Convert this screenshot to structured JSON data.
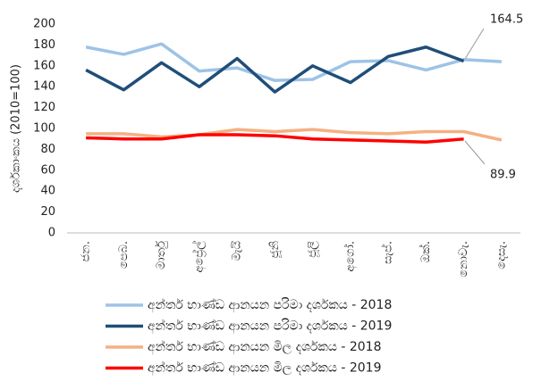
{
  "chart_data": {
    "type": "line",
    "ylabel": "දර්ශකාංකය (2010=100)",
    "categories": [
      "ජන.",
      "පෙබ.",
      "මාර්තු",
      "අප්‍රේල්",
      "මැයි",
      "ජූනි",
      "ජූලි",
      "අගෝ.",
      "සැප්.",
      "ඔක්.",
      "නොවැ.",
      "දෙසැ."
    ],
    "series": [
      {
        "name": "අන්තර් භාණ්ඩ ආනයන පරිමා දර්ශකය - 2018",
        "color": "#9dc3e6",
        "values": [
          178,
          171,
          181,
          155,
          158,
          146,
          147,
          164,
          165,
          156,
          166,
          164
        ]
      },
      {
        "name": "අන්තර් භාණ්ඩ ආනයන පරිමා දර්ශකය - 2019",
        "color": "#1f4e79",
        "values": [
          156,
          137,
          163,
          140,
          167,
          135,
          160,
          144,
          169,
          178,
          164.5,
          null
        ]
      },
      {
        "name": "අන්තර් භාණ්ඩ ආනයන මිල දර්ශකය - 2018",
        "color": "#f4b183",
        "values": [
          95,
          95,
          92,
          94,
          99,
          97,
          99,
          96,
          95,
          97,
          97,
          89
        ]
      },
      {
        "name": "අන්තර් භාණ්ඩ ආනයන මිල දර්ශකය - 2019",
        "color": "#ff0000",
        "values": [
          91,
          90,
          90,
          94,
          94,
          93,
          90,
          89,
          88,
          87,
          89.9,
          null
        ]
      }
    ],
    "ylim": [
      0,
      200
    ],
    "yticks": [
      0,
      20,
      40,
      60,
      80,
      100,
      120,
      140,
      160,
      180,
      200
    ],
    "grid": false
  }
}
